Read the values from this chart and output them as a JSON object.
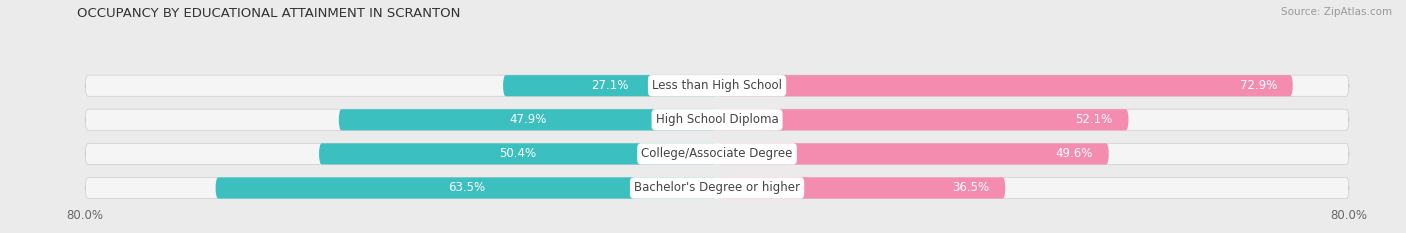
{
  "title": "OCCUPANCY BY EDUCATIONAL ATTAINMENT IN SCRANTON",
  "source": "Source: ZipAtlas.com",
  "categories": [
    "Less than High School",
    "High School Diploma",
    "College/Associate Degree",
    "Bachelor's Degree or higher"
  ],
  "owner_values": [
    27.1,
    47.9,
    50.4,
    63.5
  ],
  "renter_values": [
    72.9,
    52.1,
    49.6,
    36.5
  ],
  "owner_color": "#3bbfbf",
  "renter_color": "#f48cb0",
  "background_color": "#ebebeb",
  "bar_bg_color": "#f5f5f5",
  "title_fontsize": 9.5,
  "source_fontsize": 7.5,
  "label_fontsize": 8.5,
  "value_fontsize": 8.5,
  "axis_fontsize": 8.5,
  "max_val": 80.0,
  "axis_left_label": "80.0%",
  "axis_right_label": "80.0%"
}
